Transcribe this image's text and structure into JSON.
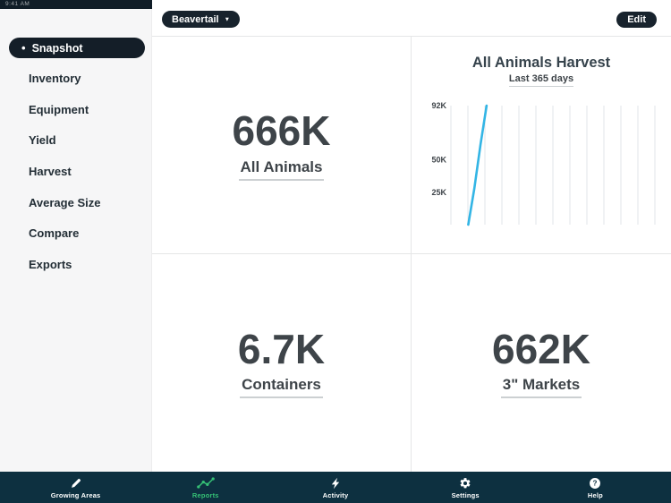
{
  "status_bar": {
    "text": "9:41 AM"
  },
  "top_bar": {
    "location_button": {
      "label": "Beavertail",
      "chevron": "▼"
    },
    "edit_button": "Edit"
  },
  "sidebar": {
    "selected_bullet": "•",
    "items": [
      {
        "label": "Snapshot",
        "selected": true
      },
      {
        "label": "Inventory",
        "selected": false
      },
      {
        "label": "Equipment",
        "selected": false
      },
      {
        "label": "Yield",
        "selected": false
      },
      {
        "label": "Harvest",
        "selected": false
      },
      {
        "label": "Average Size",
        "selected": false
      },
      {
        "label": "Compare",
        "selected": false
      },
      {
        "label": "Exports",
        "selected": false
      }
    ]
  },
  "cards": {
    "all_animals": {
      "value": "666K",
      "label": "All Animals"
    },
    "containers": {
      "value": "6.7K",
      "label": "Containers"
    },
    "markets": {
      "value": "662K",
      "label": "3\" Markets"
    }
  },
  "chart_data": {
    "type": "line",
    "title": "All Animals Harvest",
    "subtitle": "Last 365 days",
    "xlabel": "",
    "ylabel": "",
    "x_range_days": 365,
    "ylim": [
      0,
      92000
    ],
    "y_ticks": [
      {
        "label": "92K",
        "value": 92000
      },
      {
        "label": "50K",
        "value": 50000
      },
      {
        "label": "25K",
        "value": 25000
      }
    ],
    "gridlines": {
      "vertical_count": 13,
      "horizontal": false
    },
    "legend": "none",
    "series": [
      {
        "name": "All Animals",
        "color": "#33b5e5",
        "points_x_fraction": [
          0.085,
          0.115,
          0.145,
          0.175
        ],
        "points_y": [
          0,
          28000,
          62000,
          92000
        ]
      }
    ]
  },
  "tab_bar": {
    "items": [
      {
        "label": "Growing Areas",
        "icon": "pencil-icon",
        "selected": false
      },
      {
        "label": "Reports",
        "icon": "graph-icon",
        "selected": true
      },
      {
        "label": "Activity",
        "icon": "lightning-icon",
        "selected": false
      },
      {
        "label": "Settings",
        "icon": "gear-icon",
        "selected": false
      },
      {
        "label": "Help",
        "icon": "help-icon",
        "selected": false
      }
    ]
  },
  "colors": {
    "navy_bar": "#0d3040",
    "pill_dark": "#18232d",
    "accent_green": "#35c075",
    "chart_blue": "#33b5e5",
    "text_dark": "#3e4449"
  }
}
